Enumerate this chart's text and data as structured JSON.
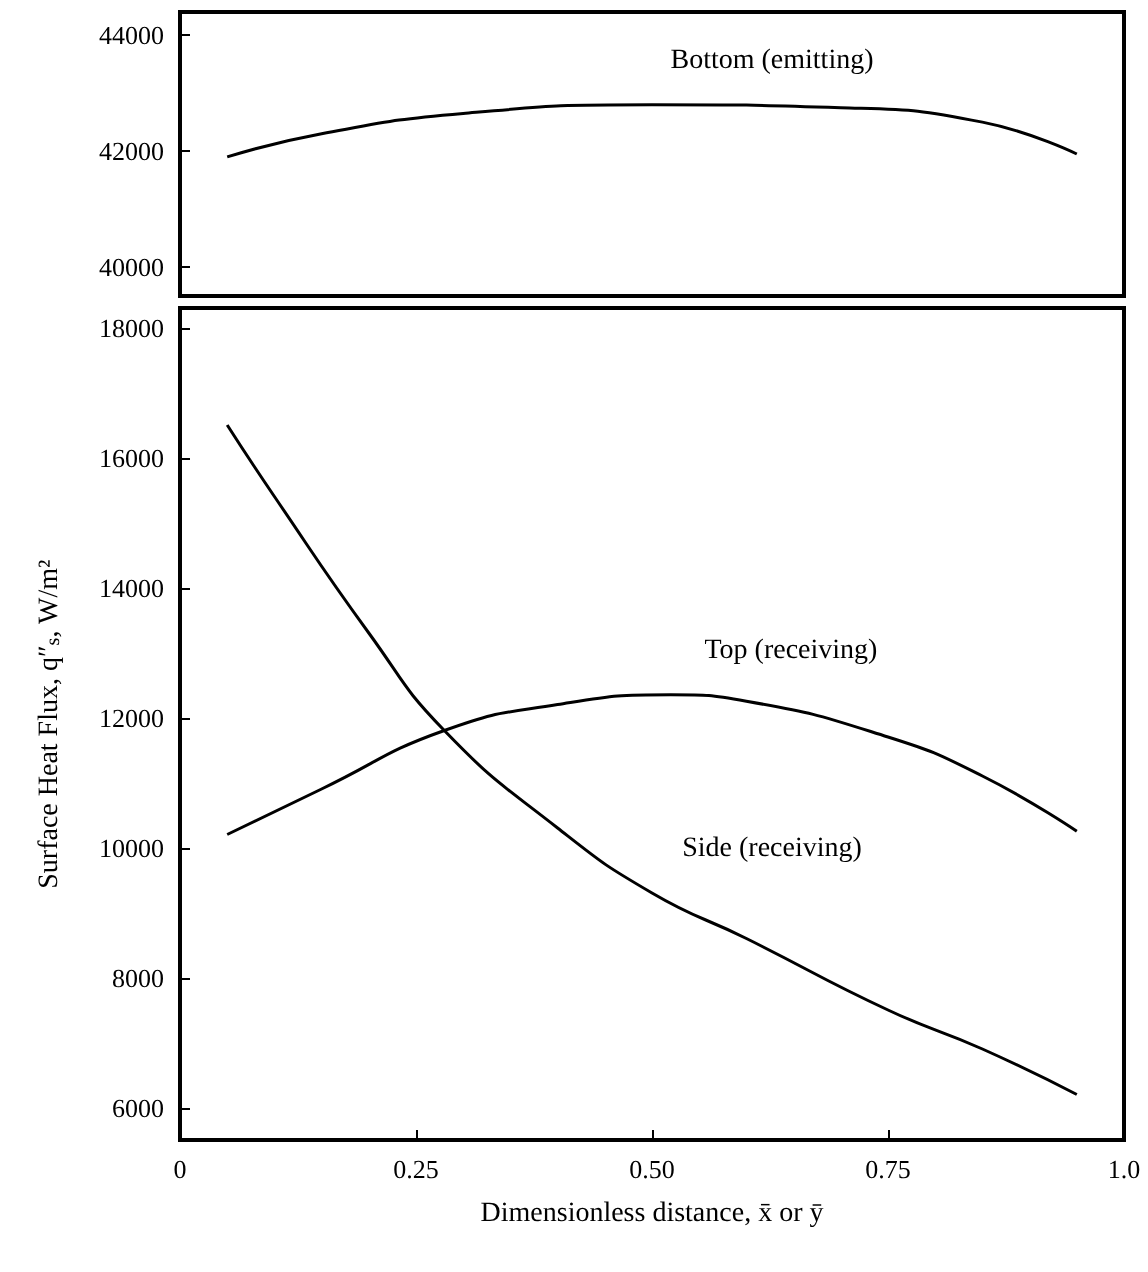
{
  "chart_data": [
    {
      "type": "line",
      "x": [
        0.05,
        0.15,
        0.3,
        0.5,
        0.7,
        0.85,
        0.95
      ],
      "xlim": [
        0,
        1.0
      ],
      "ylim": [
        39500,
        44400
      ],
      "yticks": [
        40000,
        42000,
        44000
      ],
      "tick_labels": "y",
      "grid": false,
      "marker": "none",
      "series": [
        {
          "name": "Bottom (emitting)",
          "color": "#000000",
          "values": [
            41900,
            42300,
            42650,
            42800,
            42750,
            42500,
            41950
          ]
        }
      ]
    },
    {
      "type": "line",
      "xlim": [
        0,
        1.0
      ],
      "ylim": [
        5500,
        18300
      ],
      "xticks": [
        0,
        0.25,
        {
          "value": 0.5,
          "label": "0.50"
        },
        0.75,
        {
          "value": 1,
          "label": "1.0"
        }
      ],
      "yticks": [
        6000,
        8000,
        10000,
        12000,
        14000,
        16000,
        18000
      ],
      "xlabel": "Dimensionless distance, x̄ or ȳ",
      "ylabel": "Surface Heat Flux, q″$_{s}$, W/m²",
      "grid": false,
      "marker": "none",
      "series": [
        {
          "name": "Top (receiving)",
          "color": "#000000",
          "x": [
            0.05,
            0.15,
            0.28,
            0.4,
            0.52,
            0.6,
            0.75,
            0.85,
            0.95
          ],
          "values": [
            10200,
            10900,
            11800,
            12200,
            12350,
            12250,
            11700,
            11100,
            10250
          ]
        },
        {
          "name": "Side (receiving)",
          "color": "#000000",
          "x": [
            0.05,
            0.1,
            0.2,
            0.28,
            0.4,
            0.5,
            0.6,
            0.75,
            0.85,
            0.95
          ],
          "values": [
            16500,
            15400,
            13300,
            11800,
            10300,
            9300,
            8600,
            7500,
            6900,
            6200
          ]
        }
      ]
    }
  ]
}
